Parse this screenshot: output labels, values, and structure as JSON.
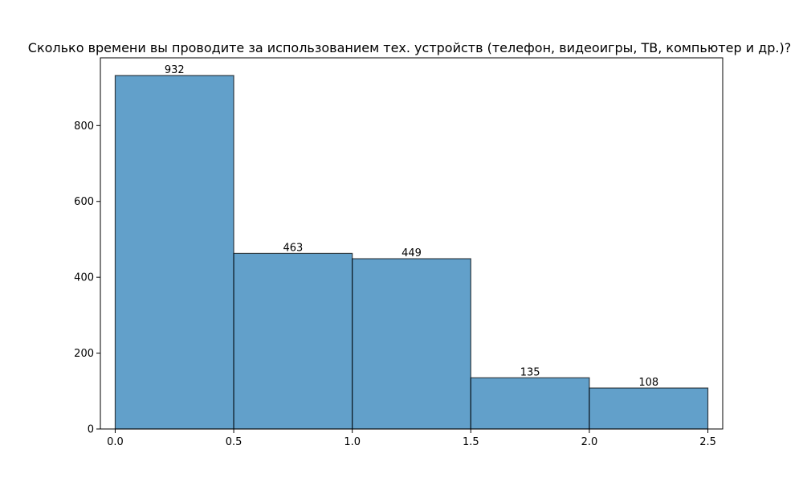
{
  "chart_data": {
    "type": "bar",
    "title": "Сколько времени вы проводите за использованием тех. устройств (телефон, видеоигры, ТВ, компьютер и др.)?",
    "xlabel": "",
    "ylabel": "",
    "bins": [
      {
        "x0": 0.0,
        "x1": 0.5,
        "value": 932
      },
      {
        "x0": 0.5,
        "x1": 1.0,
        "value": 463
      },
      {
        "x0": 1.0,
        "x1": 1.5,
        "value": 449
      },
      {
        "x0": 1.5,
        "x1": 2.0,
        "value": 135
      },
      {
        "x0": 2.0,
        "x1": 2.5,
        "value": 108
      }
    ],
    "bar_labels": [
      "932",
      "463",
      "449",
      "135",
      "108"
    ],
    "xlim": [
      -0.0625,
      2.5625
    ],
    "ylim": [
      0,
      978.6
    ],
    "x_ticks": [
      0.0,
      0.5,
      1.0,
      1.5,
      2.0,
      2.5
    ],
    "x_tick_labels": [
      "0.0",
      "0.5",
      "1.0",
      "1.5",
      "2.0",
      "2.5"
    ],
    "y_ticks": [
      0,
      200,
      400,
      600,
      800
    ],
    "y_tick_labels": [
      "0",
      "200",
      "400",
      "600",
      "800"
    ],
    "grid": false,
    "bar_color": "#1f77b4",
    "bar_opacity": 0.7,
    "bar_edge_color": "#000000"
  }
}
